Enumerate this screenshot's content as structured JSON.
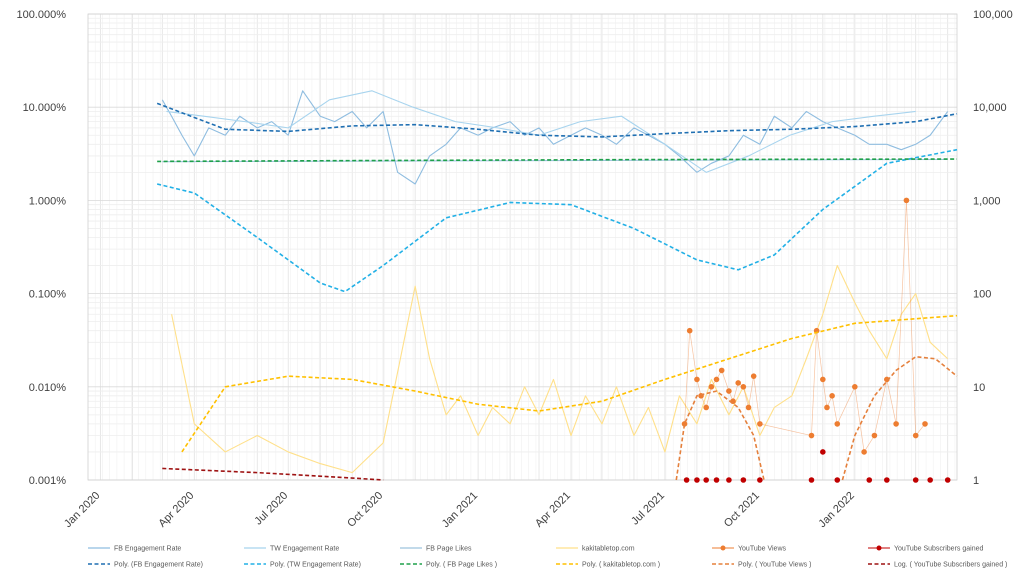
{
  "chart_data": {
    "type": "line",
    "title": "",
    "xlabel": "",
    "ylabel_left": "",
    "ylabel_right": "",
    "x_ticks": [
      "Jan 2020",
      "Apr 2020",
      "Jul 2020",
      "Oct 2020",
      "Jan 2021",
      "Apr 2021",
      "Jul 2021",
      "Oct 2021",
      "Jan 2022"
    ],
    "x_range": [
      "2019-12-20",
      "2022-04-10"
    ],
    "y_left": {
      "scale": "log",
      "range": [
        1e-05,
        1
      ],
      "ticks": [
        {
          "v": 1,
          "label": "100.000%"
        },
        {
          "v": 0.1,
          "label": "10.000%"
        },
        {
          "v": 0.01,
          "label": "1.000%"
        },
        {
          "v": 0.001,
          "label": "0.100%"
        },
        {
          "v": 0.0001,
          "label": "0.010%"
        },
        {
          "v": 1e-05,
          "label": "0.001%"
        }
      ]
    },
    "y_right": {
      "scale": "log",
      "range": [
        1,
        100000
      ],
      "ticks": [
        {
          "v": 100000,
          "label": "100,000"
        },
        {
          "v": 10000,
          "label": "10,000"
        },
        {
          "v": 1000,
          "label": "1,000"
        },
        {
          "v": 100,
          "label": "100"
        },
        {
          "v": 10,
          "label": "10"
        },
        {
          "v": 1,
          "label": "1"
        }
      ]
    },
    "grid": true,
    "legend_position": "bottom",
    "colors": {
      "fb": "#8fbde0",
      "tw": "#a8d4ee",
      "fbl": "#9ec4de",
      "web": "#ffe08a",
      "yt": "#ed7d31",
      "ytsub": "#c00000",
      "poly_fb": "#1f6fb2",
      "poly_tw": "#22b0e6",
      "poly_fbl": "#1fa04a",
      "poly_web": "#ffc000",
      "poly_yt": "#e5803c",
      "log_ytsub": "#9e1212"
    },
    "series": [
      {
        "name": "FB Engagement Rate",
        "axis": "left",
        "kind": "line",
        "x": [
          "2020-03-01",
          "2020-03-10",
          "2020-03-20",
          "2020-04-01",
          "2020-04-15",
          "2020-05-01",
          "2020-05-15",
          "2020-06-01",
          "2020-06-15",
          "2020-07-01",
          "2020-07-15",
          "2020-08-01",
          "2020-08-15",
          "2020-09-01",
          "2020-09-15",
          "2020-10-01",
          "2020-10-15",
          "2020-11-01",
          "2020-11-15",
          "2020-12-01",
          "2020-12-15",
          "2021-01-01",
          "2021-01-15",
          "2021-02-01",
          "2021-02-15",
          "2021-03-01",
          "2021-03-15",
          "2021-04-01",
          "2021-04-15",
          "2021-05-01",
          "2021-05-15",
          "2021-06-01",
          "2021-06-15",
          "2021-07-01",
          "2021-07-15",
          "2021-08-01",
          "2021-08-15",
          "2021-09-01",
          "2021-09-15",
          "2021-10-01",
          "2021-10-15",
          "2021-11-01",
          "2021-11-15",
          "2021-12-01",
          "2021-12-15",
          "2022-01-01",
          "2022-01-15",
          "2022-02-01",
          "2022-02-15",
          "2022-03-01",
          "2022-03-15",
          "2022-04-01"
        ],
        "y": [
          0.12,
          0.08,
          0.05,
          0.03,
          0.06,
          0.05,
          0.08,
          0.06,
          0.07,
          0.05,
          0.15,
          0.08,
          0.07,
          0.09,
          0.06,
          0.09,
          0.02,
          0.015,
          0.03,
          0.04,
          0.06,
          0.05,
          0.06,
          0.07,
          0.05,
          0.06,
          0.04,
          0.05,
          0.06,
          0.05,
          0.04,
          0.06,
          0.05,
          0.04,
          0.03,
          0.02,
          0.025,
          0.03,
          0.05,
          0.04,
          0.08,
          0.06,
          0.09,
          0.07,
          0.06,
          0.05,
          0.04,
          0.04,
          0.035,
          0.04,
          0.05,
          0.09
        ]
      },
      {
        "name": "TW Engagement Rate",
        "axis": "left",
        "kind": "line",
        "x": [
          "2020-03-05",
          "2020-04-10",
          "2020-05-20",
          "2020-07-01",
          "2020-08-10",
          "2020-09-20",
          "2020-10-30",
          "2020-12-10",
          "2021-01-20",
          "2021-03-01",
          "2021-04-10",
          "2021-05-20",
          "2021-07-01",
          "2021-08-10",
          "2021-09-20",
          "2021-10-30",
          "2021-12-10",
          "2022-01-20",
          "2022-03-01"
        ],
        "y": [
          0.09,
          0.08,
          0.07,
          0.06,
          0.12,
          0.15,
          0.1,
          0.07,
          0.06,
          0.05,
          0.07,
          0.08,
          0.04,
          0.02,
          0.03,
          0.05,
          0.07,
          0.08,
          0.09
        ]
      },
      {
        "name": "FB Page Likes",
        "axis": "right",
        "kind": "line",
        "x": [
          "2020-03-01",
          "2022-04-01"
        ],
        "y": [
          2600,
          2750
        ]
      },
      {
        "name": "kakitabletop.com",
        "axis": "right",
        "kind": "line",
        "x": [
          "2020-03-10",
          "2020-04-01",
          "2020-05-01",
          "2020-06-01",
          "2020-07-01",
          "2020-08-01",
          "2020-09-01",
          "2020-10-01",
          "2020-11-01",
          "2020-11-15",
          "2020-12-01",
          "2020-12-15",
          "2021-01-01",
          "2021-01-15",
          "2021-02-01",
          "2021-02-15",
          "2021-03-01",
          "2021-03-15",
          "2021-04-01",
          "2021-04-15",
          "2021-05-01",
          "2021-05-15",
          "2021-06-01",
          "2021-06-15",
          "2021-07-01",
          "2021-07-15",
          "2021-08-01",
          "2021-08-15",
          "2021-09-01",
          "2021-09-15",
          "2021-10-01",
          "2021-10-15",
          "2021-11-01",
          "2021-11-15",
          "2021-12-01",
          "2021-12-15",
          "2022-01-01",
          "2022-01-15",
          "2022-02-01",
          "2022-02-15",
          "2022-03-01",
          "2022-03-15",
          "2022-04-01"
        ],
        "y": [
          60,
          4,
          2,
          3,
          2,
          1.5,
          1.2,
          2.5,
          120,
          20,
          5,
          8,
          3,
          6,
          4,
          10,
          5,
          12,
          3,
          8,
          4,
          10,
          3,
          6,
          2,
          8,
          4,
          12,
          5,
          10,
          3,
          6,
          8,
          20,
          60,
          200,
          80,
          40,
          20,
          60,
          100,
          30,
          20
        ]
      },
      {
        "name": "YouTube Views",
        "axis": "right",
        "kind": "markers",
        "x": [
          "2021-07-20",
          "2021-07-25",
          "2021-08-01",
          "2021-08-05",
          "2021-08-10",
          "2021-08-15",
          "2021-08-20",
          "2021-08-25",
          "2021-09-01",
          "2021-09-05",
          "2021-09-10",
          "2021-09-15",
          "2021-09-20",
          "2021-09-25",
          "2021-10-01",
          "2021-11-20",
          "2021-11-25",
          "2021-12-01",
          "2021-12-05",
          "2021-12-10",
          "2021-12-15",
          "2022-01-01",
          "2022-01-10",
          "2022-01-20",
          "2022-02-01",
          "2022-02-10",
          "2022-02-20",
          "2022-03-01",
          "2022-03-10"
        ],
        "y": [
          4,
          40,
          12,
          8,
          6,
          10,
          12,
          15,
          9,
          7,
          11,
          10,
          6,
          13,
          4,
          3,
          40,
          12,
          6,
          8,
          4,
          10,
          2,
          3,
          12,
          4,
          1000,
          3,
          4
        ]
      },
      {
        "name": "YouTube Subscribers gained",
        "axis": "right",
        "kind": "markers",
        "x": [
          "2021-07-22",
          "2021-08-01",
          "2021-08-10",
          "2021-08-20",
          "2021-09-01",
          "2021-09-15",
          "2021-10-01",
          "2021-11-20",
          "2021-12-01",
          "2021-12-15",
          "2022-01-15",
          "2022-02-01",
          "2022-03-01",
          "2022-03-15",
          "2022-04-01"
        ],
        "y": [
          1,
          1,
          1,
          1,
          1,
          1,
          1,
          1,
          2,
          1,
          1,
          1,
          1,
          1,
          1
        ]
      },
      {
        "name": "Poly. (FB Engagement Rate)",
        "axis": "left",
        "kind": "trend",
        "x": [
          "2020-02-25",
          "2020-05-01",
          "2020-07-01",
          "2020-09-01",
          "2020-11-01",
          "2021-01-01",
          "2021-03-01",
          "2021-05-01",
          "2021-07-01",
          "2021-09-01",
          "2021-11-01",
          "2022-01-01",
          "2022-03-01",
          "2022-04-10"
        ],
        "y": [
          0.11,
          0.058,
          0.055,
          0.063,
          0.065,
          0.058,
          0.05,
          0.048,
          0.052,
          0.056,
          0.058,
          0.062,
          0.07,
          0.085
        ]
      },
      {
        "name": "Poly. (TW Engagement Rate)",
        "axis": "left",
        "kind": "trend",
        "x": [
          "2020-02-25",
          "2020-04-01",
          "2020-06-01",
          "2020-08-01",
          "2020-08-25",
          "2020-10-01",
          "2020-12-01",
          "2021-02-01",
          "2021-04-01",
          "2021-06-01",
          "2021-08-01",
          "2021-09-10",
          "2021-10-15",
          "2021-12-01",
          "2022-02-01",
          "2022-04-10"
        ],
        "y": [
          0.015,
          0.012,
          0.004,
          0.0013,
          0.00105,
          0.002,
          0.0065,
          0.0095,
          0.009,
          0.005,
          0.0023,
          0.0018,
          0.0026,
          0.008,
          0.025,
          0.035
        ]
      },
      {
        "name": "Poly. ( FB Page Likes )",
        "axis": "right",
        "kind": "trend",
        "x": [
          "2020-02-25",
          "2020-10-01",
          "2021-06-01",
          "2022-04-10"
        ],
        "y": [
          2620,
          2680,
          2740,
          2780
        ]
      },
      {
        "name": "Poly. ( kakitabletop.com )",
        "axis": "right",
        "kind": "trend",
        "x": [
          "2020-03-20",
          "2020-05-01",
          "2020-07-01",
          "2020-09-01",
          "2020-11-01",
          "2021-01-01",
          "2021-03-01",
          "2021-05-01",
          "2021-07-01",
          "2021-09-01",
          "2021-11-01",
          "2022-01-01",
          "2022-04-10"
        ],
        "y": [
          2,
          10,
          13,
          12,
          9,
          6.5,
          5.5,
          7,
          12,
          20,
          33,
          48,
          58
        ]
      },
      {
        "name": "Poly. ( YouTube Views )",
        "axis": "right",
        "kind": "trend",
        "x": [
          "2021-07-12",
          "2021-07-20",
          "2021-08-01",
          "2021-08-20",
          "2021-09-10",
          "2021-09-25",
          "2021-10-05"
        ],
        "y": [
          1,
          4,
          8,
          9,
          6,
          3,
          1
        ]
      },
      {
        "name": "Poly. ( YouTube Views )",
        "axis": "right",
        "kind": "trend",
        "legend": false,
        "x": [
          "2021-12-20",
          "2022-01-01",
          "2022-01-20",
          "2022-02-10",
          "2022-03-01",
          "2022-03-20",
          "2022-04-10"
        ],
        "y": [
          1,
          3,
          8,
          15,
          21,
          20,
          13
        ]
      },
      {
        "name": "Log. ( YouTube Subscribers gained )",
        "axis": "right",
        "kind": "trend",
        "x": [
          "2020-03-01",
          "2020-06-01",
          "2020-09-01",
          "2020-10-01"
        ],
        "y": [
          1.33,
          1.2,
          1.05,
          1.0
        ]
      }
    ]
  },
  "legend": [
    {
      "label": "FB Engagement Rate",
      "color": "#8fbde0",
      "style": "solid"
    },
    {
      "label": "TW Engagement Rate",
      "color": "#a8d4ee",
      "style": "solid"
    },
    {
      "label": "FB Page Likes",
      "color": "#9ec4de",
      "style": "solid"
    },
    {
      "label": "kakitabletop.com",
      "color": "#ffe08a",
      "style": "solid"
    },
    {
      "label": "YouTube Views",
      "color": "#ed7d31",
      "style": "marker"
    },
    {
      "label": "YouTube Subscribers gained",
      "color": "#c00000",
      "style": "marker"
    },
    {
      "label": "Poly. (FB Engagement Rate)",
      "color": "#1f6fb2",
      "style": "dashed"
    },
    {
      "label": "Poly. (TW Engagement Rate)",
      "color": "#22b0e6",
      "style": "dashed"
    },
    {
      "label": "Poly. ( FB Page Likes )",
      "color": "#1fa04a",
      "style": "dashed"
    },
    {
      "label": "Poly. ( kakitabletop.com )",
      "color": "#ffc000",
      "style": "dashed"
    },
    {
      "label": "Poly. ( YouTube Views )",
      "color": "#e5803c",
      "style": "dashed"
    },
    {
      "label": "Log. ( YouTube Subscribers gained )",
      "color": "#9e1212",
      "style": "dashed"
    }
  ]
}
